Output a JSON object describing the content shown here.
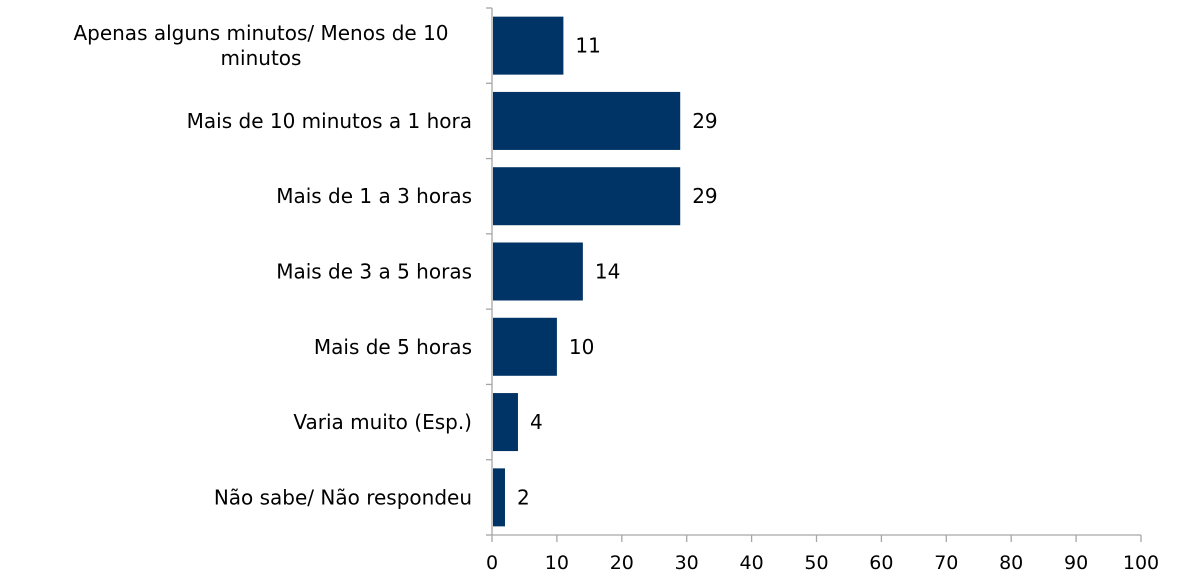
{
  "chart_data": {
    "type": "bar",
    "orientation": "horizontal",
    "categories": [
      "Apenas alguns minutos/ Menos de 10 minutos",
      "Mais de 10 minutos a 1 hora",
      "Mais de 1 a 3 horas",
      "Mais de 3 a 5 horas",
      "Mais de 5 horas",
      "Varia muito (Esp.)",
      "Não sabe/ Não respondeu"
    ],
    "category_lines": [
      [
        "Apenas alguns minutos/ Menos de 10",
        "minutos"
      ],
      [
        "Mais de 10 minutos a 1 hora"
      ],
      [
        "Mais de 1 a 3 horas"
      ],
      [
        "Mais de 3 a 5 horas"
      ],
      [
        "Mais de 5 horas"
      ],
      [
        "Varia muito (Esp.)"
      ],
      [
        "Não sabe/ Não respondeu"
      ]
    ],
    "values": [
      11,
      29,
      29,
      14,
      10,
      4,
      2
    ],
    "data_labels": [
      "11",
      "29",
      "29",
      "14",
      "10",
      "4",
      "2"
    ],
    "xlim": [
      0,
      100
    ],
    "xticks": [
      0,
      10,
      20,
      30,
      40,
      50,
      60,
      70,
      80,
      90,
      100
    ],
    "xtick_labels": [
      "0",
      "10",
      "20",
      "30",
      "40",
      "50",
      "60",
      "70",
      "80",
      "90",
      "100"
    ],
    "grid": false,
    "legend": "none",
    "title": "",
    "xlabel": "",
    "ylabel": "",
    "colors": {
      "bar": "#003366",
      "axis": "#a6a6a6"
    }
  }
}
